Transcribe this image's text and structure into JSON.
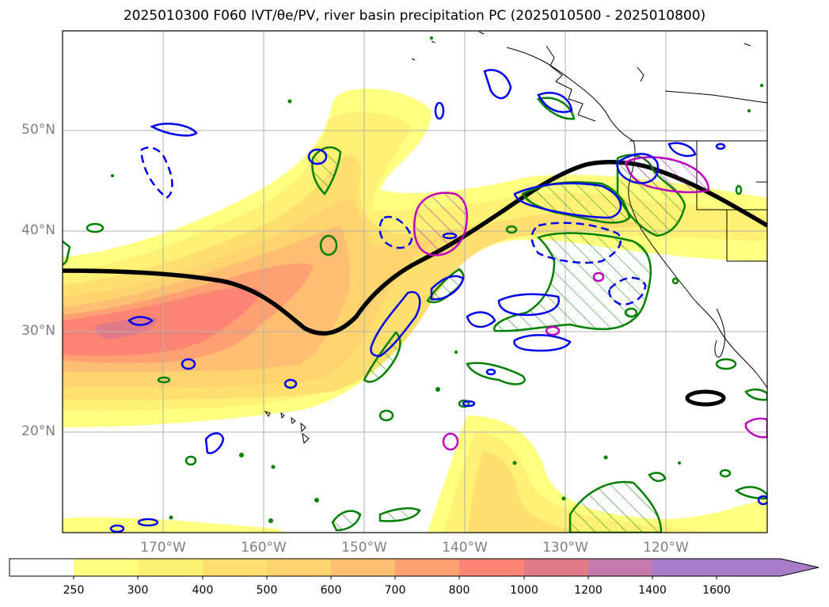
{
  "title": "2025010300 F060 IVT/θe/PV, river basin precipitation PC (2025010500 - 2025010800)",
  "lat_labels": [
    "50°N",
    "40°N",
    "30°N",
    "20°N"
  ],
  "lon_labels": [
    "170°W",
    "160°W",
    "150°W",
    "140°W",
    "130°W",
    "120°W"
  ],
  "colorbar": {
    "ticks": [
      "250",
      "300",
      "400",
      "500",
      "600",
      "700",
      "800",
      "1000",
      "1200",
      "1400",
      "1600"
    ],
    "colors": [
      "#ffffff",
      "#ffff80",
      "#fff173",
      "#ffe06e",
      "#ffd36e",
      "#ffbe72",
      "#ffa072",
      "#fc8474",
      "#e07a86",
      "#c47aac",
      "#a87cc8"
    ]
  },
  "contour_colors": {
    "theta_e_line": "#000000",
    "pv": "#0000ee",
    "precip_positive": "#008000",
    "precip_negative": "#c000c0"
  }
}
